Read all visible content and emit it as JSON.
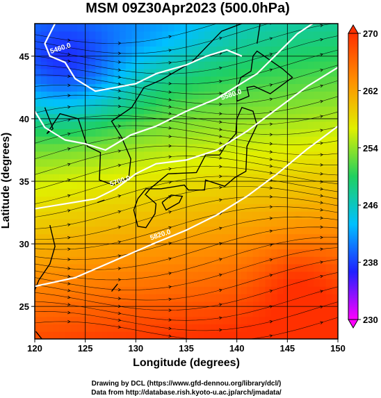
{
  "chart_data": {
    "type": "heatmap",
    "title": "MSM 09Z30Apr2023 (500.0hPa)",
    "xlabel": "Longitude (degrees)",
    "ylabel": "Latitude  (degrees)",
    "xlim": [
      120,
      150
    ],
    "ylim": [
      22.4,
      47.6
    ],
    "xticks": [
      "120",
      "125",
      "130",
      "135",
      "140",
      "145",
      "150"
    ],
    "yticks": [
      "25",
      "30",
      "35",
      "40",
      "45"
    ],
    "colorbar": {
      "ticks": [
        "230",
        "238",
        "246",
        "254",
        "262",
        "270"
      ],
      "range": [
        230,
        270
      ],
      "colors": [
        "#ff00ff",
        "#2020ff",
        "#00c0ff",
        "#20d060",
        "#e0f000",
        "#ff9000",
        "#ff3000"
      ]
    },
    "contours": [
      {
        "label": "5460.0",
        "level": 5460
      },
      {
        "label": "5580.0",
        "level": 5580
      },
      {
        "label": "5700.0",
        "level": 5700
      },
      {
        "label": "5820.0",
        "level": 5820
      }
    ],
    "contour_color": "#ffffff",
    "grid": true,
    "credits": [
      "Drawing by DCL (https://www.gfd-dennou.org/library/dcl/)",
      "Data from http://database.rish.kyoto-u.ac.jp/arch/jmadata/"
    ]
  }
}
